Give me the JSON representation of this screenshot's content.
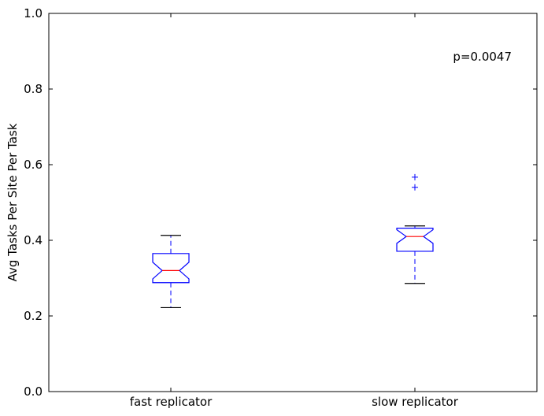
{
  "chart_data": {
    "type": "boxplot",
    "notched": true,
    "title": "",
    "xlabel": "",
    "ylabel": "Avg Tasks Per Site Per Task",
    "ylim": [
      0.0,
      1.0
    ],
    "yticks": [
      "0.0",
      "0.2",
      "0.4",
      "0.6",
      "0.8",
      "1.0"
    ],
    "grid": false,
    "categories": [
      "fast replicator",
      "slow replicator"
    ],
    "boxes": [
      {
        "name": "fast replicator",
        "whisker_low": 0.222,
        "q1": 0.288,
        "notch_low": 0.298,
        "median": 0.32,
        "notch_high": 0.342,
        "q3": 0.365,
        "whisker_high": 0.413,
        "fliers": []
      },
      {
        "name": "slow replicator",
        "whisker_low": 0.286,
        "q1": 0.371,
        "notch_low": 0.392,
        "median": 0.41,
        "notch_high": 0.428,
        "q3": 0.432,
        "whisker_high": 0.438,
        "fliers": [
          0.54,
          0.567
        ]
      }
    ],
    "annotations": [
      {
        "text": "p=0.0047",
        "position": "top-right"
      }
    ],
    "colors": {
      "box": "#0000ff",
      "median": "#ff0000",
      "whisker": "#0000ff",
      "cap": "#000000",
      "flier": "#0000ff",
      "axes": "#000000"
    }
  }
}
